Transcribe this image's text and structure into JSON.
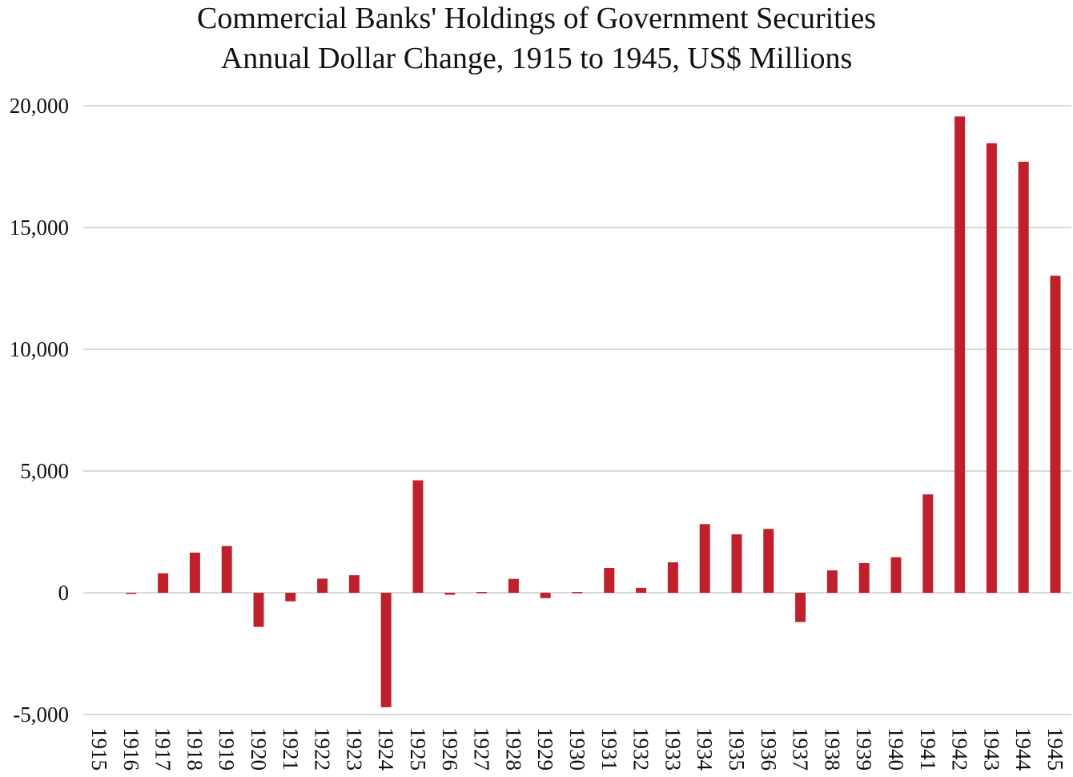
{
  "chart_data": {
    "type": "bar",
    "title_lines": [
      "Commercial Banks' Holdings of Government Securities",
      "Annual Dollar Change, 1915 to 1945, US$ Millions"
    ],
    "xlabel": "",
    "ylabel": "",
    "categories": [
      "1915",
      "1916",
      "1917",
      "1918",
      "1919",
      "1920",
      "1921",
      "1922",
      "1923",
      "1924",
      "1925",
      "1926",
      "1927",
      "1928",
      "1929",
      "1930",
      "1931",
      "1932",
      "1933",
      "1934",
      "1935",
      "1936",
      "1937",
      "1938",
      "1939",
      "1940",
      "1941",
      "1942",
      "1943",
      "1944",
      "1945"
    ],
    "values": [
      0,
      -50,
      800,
      1650,
      1920,
      -1400,
      -350,
      580,
      720,
      -4700,
      4620,
      -80,
      30,
      570,
      -220,
      30,
      1020,
      200,
      1250,
      2820,
      2400,
      2620,
      -1200,
      920,
      1220,
      1460,
      4040,
      19560,
      18460,
      17700,
      13020
    ],
    "ylim": [
      -5000,
      20000
    ],
    "yticks": [
      -5000,
      0,
      5000,
      10000,
      15000,
      20000
    ],
    "ytick_labels": [
      "-5,000",
      "0",
      "5,000",
      "10,000",
      "15,000",
      "20,000"
    ],
    "grid": true,
    "legend": "none",
    "bar_color": "#c0202a",
    "grid_color": "#d9d9d9"
  }
}
